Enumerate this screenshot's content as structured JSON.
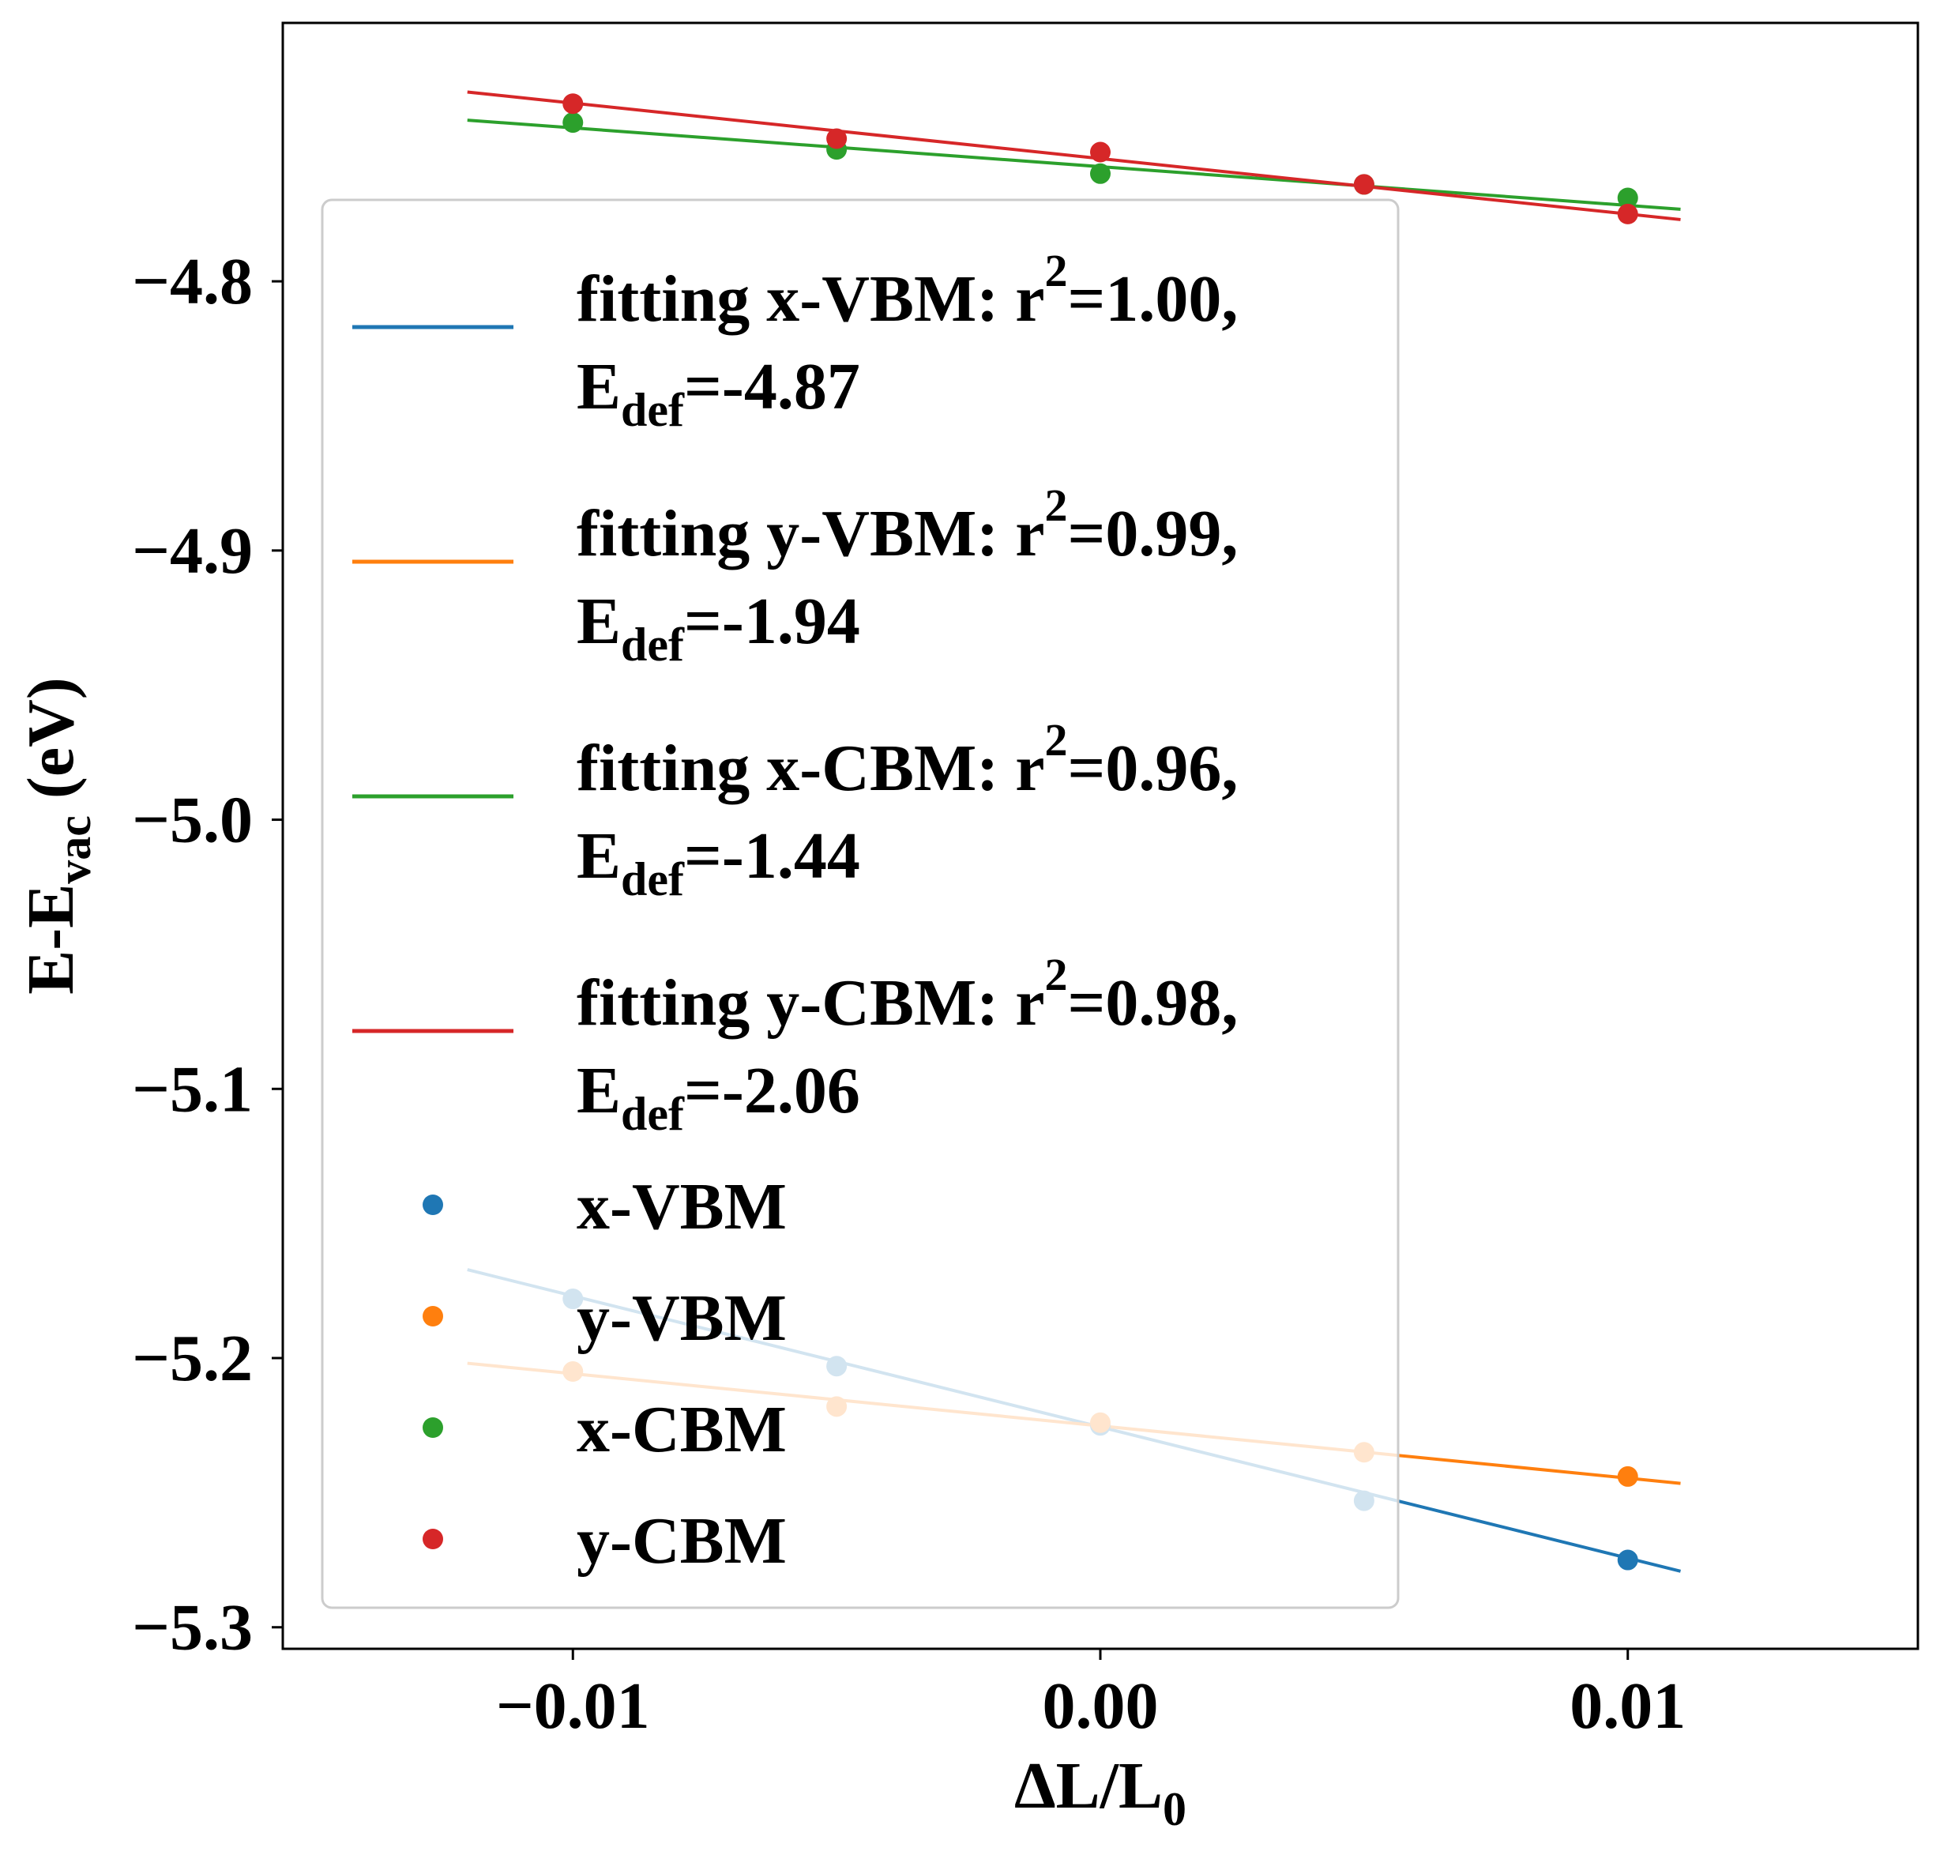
{
  "chart_data": {
    "type": "scatter",
    "xlabel": "ΔL/L",
    "xlabel_sub": "0",
    "ylabel": "E-E",
    "ylabel_sub": "vac",
    "ylabel_suffix": " (eV)",
    "xlim": [
      -0.0155,
      0.0155
    ],
    "ylim": [
      -5.308,
      -4.704
    ],
    "x_ticks": [
      -0.01,
      0.0,
      0.01
    ],
    "x_tick_labels": [
      "−0.01",
      "0.00",
      "0.01"
    ],
    "y_ticks": [
      -4.8,
      -4.9,
      -5.0,
      -5.1,
      -5.2,
      -5.3
    ],
    "y_tick_labels": [
      "−4.8",
      "−4.9",
      "−5.0",
      "−5.1",
      "−5.2",
      "−5.3"
    ],
    "grid": false,
    "legend_position": "upper-left",
    "fit_x_range": [
      -0.012,
      0.011
    ],
    "series": [
      {
        "name": "x-VBM",
        "color": "#1f77b4",
        "x": [
          -0.01,
          -0.005,
          0.0,
          0.005,
          0.01
        ],
        "y": [
          -5.178,
          -5.203,
          -5.225,
          -5.253,
          -5.275
        ],
        "fit_label": "fitting x-VBM: r",
        "fit_sup": "2",
        "fit_r2": "=1.00,",
        "fit_edef_label": "E",
        "fit_edef_sub": "def",
        "fit_edef_value": "=-4.87",
        "fit_slope": -4.87,
        "fit_intercept": -5.2256
      },
      {
        "name": "y-VBM",
        "color": "#ff7f0e",
        "x": [
          -0.01,
          -0.005,
          0.0,
          0.005,
          0.01
        ],
        "y": [
          -5.205,
          -5.218,
          -5.224,
          -5.235,
          -5.244
        ],
        "fit_label": "fitting y-VBM: r",
        "fit_sup": "2",
        "fit_r2": "=0.99,",
        "fit_edef_label": "E",
        "fit_edef_sub": "def",
        "fit_edef_value": "=-1.94",
        "fit_slope": -1.94,
        "fit_intercept": -5.2252
      },
      {
        "name": "x-CBM",
        "color": "#2ca02c",
        "x": [
          -0.01,
          -0.005,
          0.0,
          0.005,
          0.01
        ],
        "y": [
          -4.741,
          -4.751,
          -4.76,
          -4.764,
          -4.769
        ],
        "fit_label": "fitting x-CBM: r",
        "fit_sup": "2",
        "fit_r2": "=0.96,",
        "fit_edef_label": "E",
        "fit_edef_sub": "def",
        "fit_edef_value": "=-1.44",
        "fit_slope": -1.44,
        "fit_intercept": -4.7574
      },
      {
        "name": "y-CBM",
        "color": "#d62728",
        "x": [
          -0.01,
          -0.005,
          0.0,
          0.005,
          0.01
        ],
        "y": [
          -4.734,
          -4.747,
          -4.752,
          -4.764,
          -4.775
        ],
        "fit_label": "fitting y-CBM: r",
        "fit_sup": "2",
        "fit_r2": "=0.98,",
        "fit_edef_label": "E",
        "fit_edef_sub": "def",
        "fit_edef_value": "=-2.06",
        "fit_slope": -2.06,
        "fit_intercept": -4.7544
      }
    ]
  }
}
